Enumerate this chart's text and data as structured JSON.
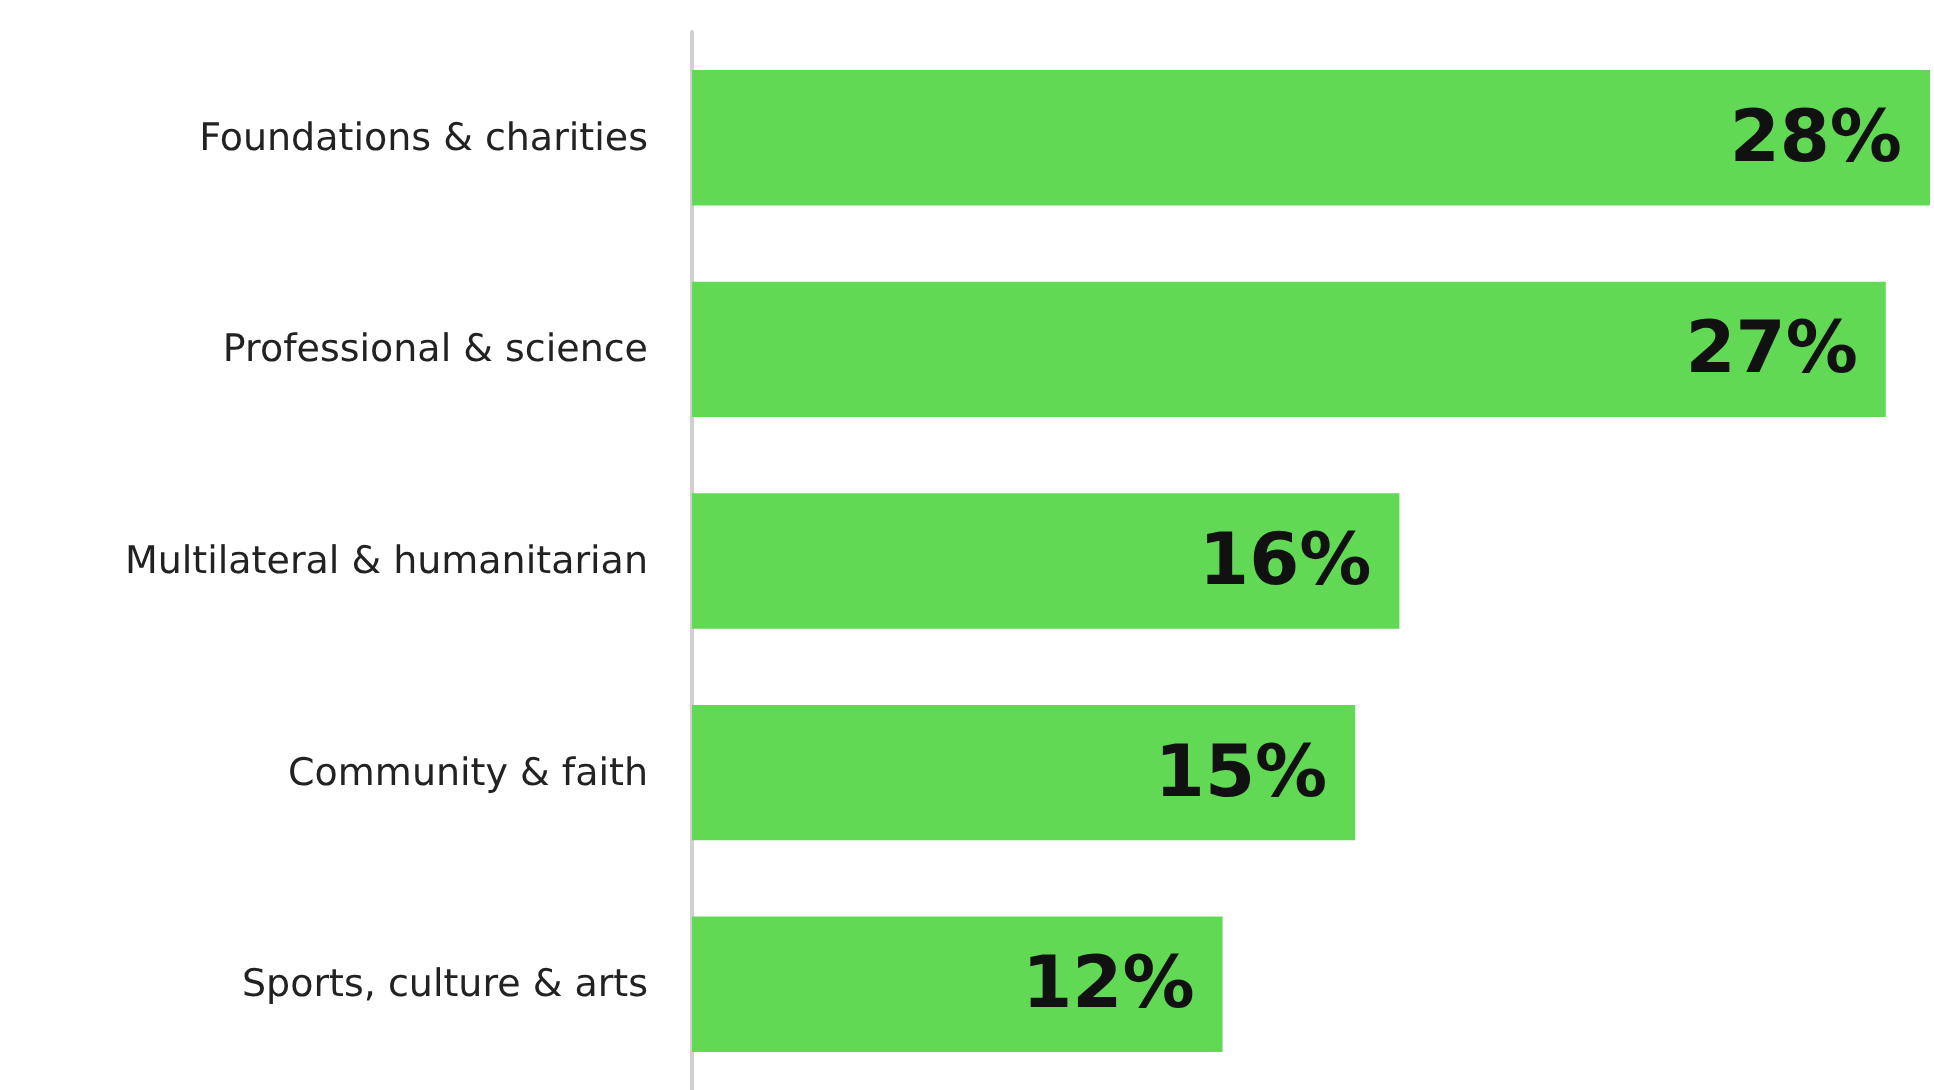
{
  "chart_data": {
    "type": "bar",
    "orientation": "horizontal",
    "categories": [
      "Foundations & charities",
      "Professional & science",
      "Multilateral & humanitarian",
      "Community & faith",
      "Sports, culture & arts"
    ],
    "values": [
      28,
      27,
      16,
      15,
      12
    ],
    "color": "#62d955",
    "value_labels": [
      "28%",
      "27%",
      "16%",
      "15%",
      "12%"
    ]
  }
}
